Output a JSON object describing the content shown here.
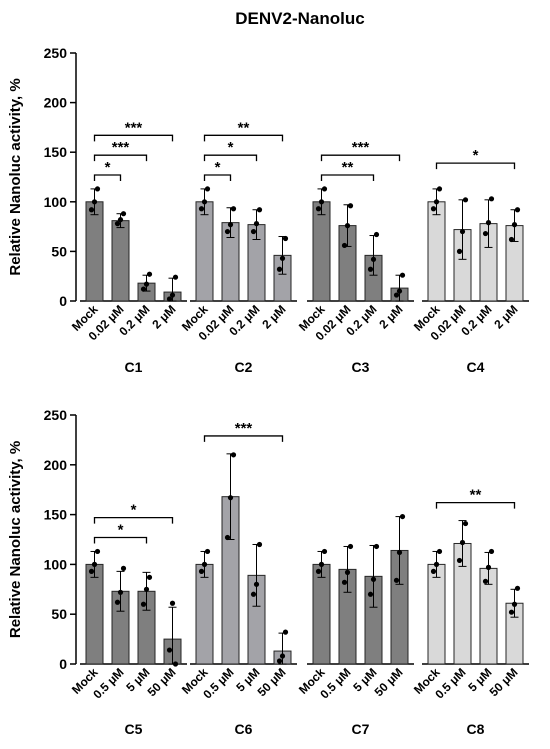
{
  "figure_title": "DENV2-Nanoluc",
  "colors": {
    "dark": "#7f7f7f",
    "mid": "#a3a3a8",
    "light": "#d9d9d9",
    "edge": "#262626"
  },
  "chart_data": [
    {
      "type": "bar",
      "ylabel": "Relative Nanoluc activity, %",
      "ylim": [
        0,
        250
      ],
      "yticks": [
        0,
        50,
        100,
        150,
        200,
        250
      ],
      "grid": false,
      "groups": [
        {
          "name": "C1",
          "color": "dark",
          "categories": [
            "Mock",
            "0.02 μM",
            "0.2 μM",
            "2 μM"
          ],
          "values": [
            100,
            81,
            18,
            9
          ],
          "errors": [
            13,
            7,
            8,
            14
          ],
          "points": [
            [
              92,
              100,
              113
            ],
            [
              78,
              82,
              88
            ],
            [
              12,
              17,
              27
            ],
            [
              2,
              6,
              24
            ]
          ],
          "brackets": [
            {
              "from": 0,
              "to": 1,
              "label": "*"
            },
            {
              "from": 0,
              "to": 2,
              "label": "***"
            },
            {
              "from": 0,
              "to": 3,
              "label": "***"
            }
          ]
        },
        {
          "name": "C2",
          "color": "mid",
          "categories": [
            "Mock",
            "0.02 μM",
            "0.2 μM",
            "2 μM"
          ],
          "values": [
            100,
            79,
            77,
            46
          ],
          "errors": [
            13,
            15,
            15,
            19
          ],
          "points": [
            [
              93,
              100,
              113
            ],
            [
              70,
              77,
              93
            ],
            [
              70,
              78,
              92
            ],
            [
              32,
              43,
              63
            ]
          ],
          "brackets": [
            {
              "from": 0,
              "to": 1,
              "label": "*"
            },
            {
              "from": 0,
              "to": 2,
              "label": "*"
            },
            {
              "from": 0,
              "to": 3,
              "label": "**"
            }
          ]
        },
        {
          "name": "C3",
          "color": "dark",
          "categories": [
            "Mock",
            "0.02 μM",
            "0.2 μM",
            "2 μM"
          ],
          "values": [
            100,
            76,
            46,
            13
          ],
          "errors": [
            13,
            21,
            20,
            13
          ],
          "points": [
            [
              93,
              100,
              113
            ],
            [
              56,
              76,
              96
            ],
            [
              32,
              42,
              67
            ],
            [
              6,
              10,
              26
            ]
          ],
          "brackets": [
            {
              "from": 0,
              "to": 2,
              "label": "**"
            },
            {
              "from": 0,
              "to": 3,
              "label": "***"
            }
          ]
        },
        {
          "name": "C4",
          "color": "light",
          "categories": [
            "Mock",
            "0.02 μM",
            "0.2 μM",
            "2 μM"
          ],
          "values": [
            100,
            72,
            78,
            76
          ],
          "errors": [
            13,
            30,
            24,
            16
          ],
          "points": [
            [
              93,
              100,
              113
            ],
            [
              50,
              70,
              102
            ],
            [
              68,
              79,
              103
            ],
            [
              62,
              77,
              92
            ]
          ],
          "brackets": [
            {
              "from": 0,
              "to": 3,
              "label": "*"
            }
          ]
        }
      ]
    },
    {
      "type": "bar",
      "ylabel": "Relative Nanoluc activity, %",
      "ylim": [
        0,
        250
      ],
      "yticks": [
        0,
        50,
        100,
        150,
        200,
        250
      ],
      "grid": false,
      "groups": [
        {
          "name": "C5",
          "color": "dark",
          "categories": [
            "Mock",
            "0.5 μM",
            "5 μM",
            "50 μM"
          ],
          "values": [
            100,
            73,
            73,
            25
          ],
          "errors": [
            13,
            20,
            19,
            32
          ],
          "points": [
            [
              93,
              100,
              113
            ],
            [
              62,
              72,
              96
            ],
            [
              60,
              75,
              87
            ],
            [
              14,
              61,
              0
            ]
          ],
          "brackets": [
            {
              "from": 0,
              "to": 2,
              "label": "*"
            },
            {
              "from": 0,
              "to": 3,
              "label": "*"
            }
          ]
        },
        {
          "name": "C6",
          "color": "mid",
          "categories": [
            "Mock",
            "0.5 μM",
            "5 μM",
            "50 μM"
          ],
          "values": [
            100,
            168,
            89,
            13
          ],
          "errors": [
            13,
            43,
            31,
            18
          ],
          "points": [
            [
              93,
              100,
              113
            ],
            [
              127,
              167,
              210
            ],
            [
              70,
              80,
              120
            ],
            [
              3,
              8,
              32
            ]
          ],
          "brackets": [
            {
              "from": 0,
              "to": 3,
              "label": "***"
            }
          ]
        },
        {
          "name": "C7",
          "color": "dark",
          "categories": [
            "Mock",
            "0.5 μM",
            "5 μM",
            "50 μM"
          ],
          "values": [
            100,
            95,
            88,
            114
          ],
          "errors": [
            13,
            23,
            31,
            34
          ],
          "points": [
            [
              93,
              100,
              113
            ],
            [
              82,
              92,
              118
            ],
            [
              70,
              85,
              118
            ],
            [
              84,
              112,
              148
            ]
          ],
          "brackets": []
        },
        {
          "name": "C8",
          "color": "light",
          "categories": [
            "Mock",
            "0.5 μM",
            "5 μM",
            "50 μM"
          ],
          "values": [
            100,
            121,
            96,
            61
          ],
          "errors": [
            13,
            23,
            16,
            14
          ],
          "points": [
            [
              93,
              100,
              113
            ],
            [
              104,
              122,
              141
            ],
            [
              83,
              97,
              113
            ],
            [
              52,
              60,
              76
            ]
          ],
          "brackets": [
            {
              "from": 0,
              "to": 3,
              "label": "**"
            }
          ]
        }
      ]
    }
  ]
}
